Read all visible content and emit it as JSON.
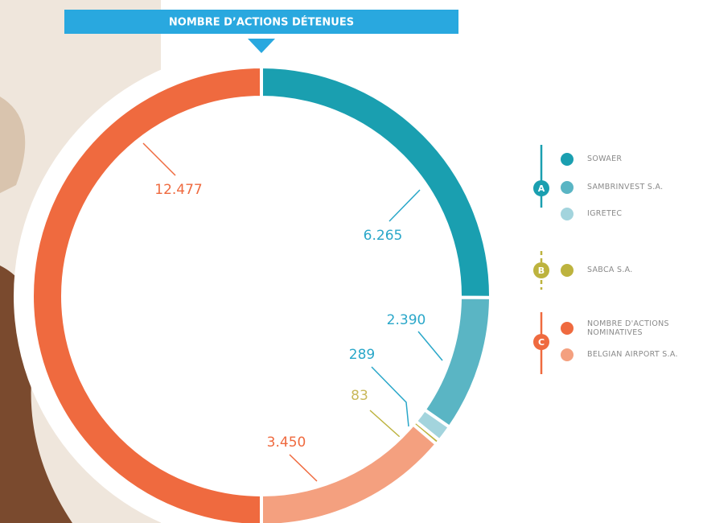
{
  "chart_data": {
    "type": "donut",
    "title": "NOMBRE D’ACTIONS DÉTENUES",
    "groups": [
      {
        "label": "A",
        "color": "#1a9fb0",
        "items": [
          {
            "name": "SOWAER",
            "color": "#1a9fb0",
            "value": 6265,
            "value_label": "6.265"
          },
          {
            "name": "SAMBRINVEST S.A.",
            "color": "#5ab5c4",
            "value": 2390,
            "value_label": "2.390"
          },
          {
            "name": "IGRETEC",
            "color": "#a3d4dd",
            "value": 289,
            "value_label": "289"
          }
        ]
      },
      {
        "label": "B",
        "color": "#bdb33e",
        "items": [
          {
            "name": "SABCA S.A.",
            "color": "#bdb33e",
            "value": 83,
            "value_label": "83"
          }
        ]
      },
      {
        "label": "C",
        "color": "#ef6a3f",
        "items": [
          {
            "name": "NOMBRE D'ACTIONS NOMINATIVES",
            "color": "#ef6a3f",
            "value": 12477,
            "value_label": "12.477"
          },
          {
            "name": "BELGIAN AIRPORT S.A.",
            "color": "#f4a07f",
            "value": 3450,
            "value_label": "3.450"
          }
        ]
      }
    ]
  }
}
